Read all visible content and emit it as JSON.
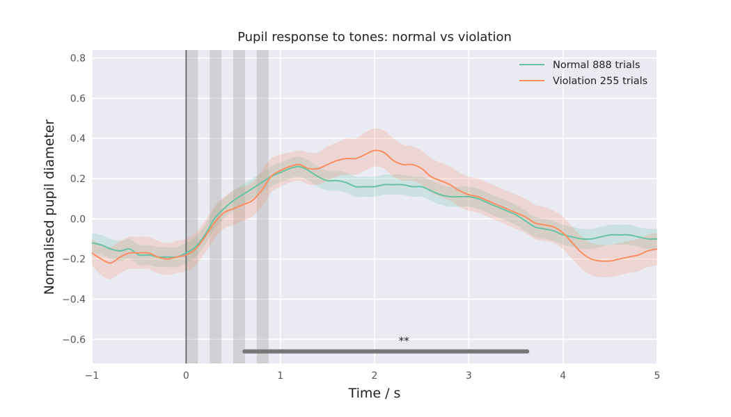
{
  "chart_data": {
    "type": "line",
    "title": "Pupil response to tones: normal vs violation",
    "xlabel": "Time / s",
    "ylabel": "Normalised pupil diameter",
    "xlim": [
      -1,
      5
    ],
    "ylim": [
      -0.72,
      0.84
    ],
    "xticks": [
      -1,
      0,
      1,
      2,
      3,
      4,
      5
    ],
    "xtick_labels": [
      "−1",
      "0",
      "1",
      "2",
      "3",
      "4",
      "5"
    ],
    "yticks": [
      -0.6,
      -0.4,
      -0.2,
      0.0,
      0.2,
      0.4,
      0.6,
      0.8
    ],
    "ytick_labels": [
      "−0.6",
      "−0.4",
      "−0.2",
      "0.0",
      "0.2",
      "0.4",
      "0.6",
      "0.8"
    ],
    "grid": true,
    "legend_position": "top-right",
    "x": [
      -1.0,
      -0.9,
      -0.8,
      -0.7,
      -0.6,
      -0.5,
      -0.4,
      -0.3,
      -0.2,
      -0.1,
      0.0,
      0.1,
      0.2,
      0.3,
      0.4,
      0.5,
      0.6,
      0.7,
      0.8,
      0.9,
      1.0,
      1.1,
      1.2,
      1.3,
      1.4,
      1.5,
      1.6,
      1.7,
      1.8,
      1.9,
      2.0,
      2.1,
      2.2,
      2.3,
      2.4,
      2.5,
      2.6,
      2.7,
      2.8,
      2.9,
      3.0,
      3.1,
      3.2,
      3.3,
      3.4,
      3.5,
      3.6,
      3.7,
      3.8,
      3.9,
      4.0,
      4.1,
      4.2,
      4.3,
      4.4,
      4.5,
      4.6,
      4.7,
      4.8,
      4.9,
      5.0
    ],
    "series": [
      {
        "name": "Normal 888 trials",
        "color": "#66c2a5",
        "values": [
          -0.12,
          -0.13,
          -0.15,
          -0.16,
          -0.15,
          -0.18,
          -0.18,
          -0.19,
          -0.19,
          -0.19,
          -0.17,
          -0.14,
          -0.08,
          0.0,
          0.05,
          0.09,
          0.12,
          0.15,
          0.18,
          0.21,
          0.23,
          0.25,
          0.26,
          0.24,
          0.21,
          0.19,
          0.19,
          0.18,
          0.16,
          0.16,
          0.16,
          0.17,
          0.17,
          0.17,
          0.16,
          0.16,
          0.14,
          0.12,
          0.11,
          0.11,
          0.11,
          0.1,
          0.08,
          0.06,
          0.04,
          0.02,
          -0.01,
          -0.04,
          -0.05,
          -0.06,
          -0.08,
          -0.09,
          -0.1,
          -0.1,
          -0.09,
          -0.08,
          -0.08,
          -0.08,
          -0.09,
          -0.1,
          -0.1
        ],
        "lower": [
          -0.17,
          -0.18,
          -0.2,
          -0.21,
          -0.2,
          -0.23,
          -0.23,
          -0.24,
          -0.24,
          -0.24,
          -0.22,
          -0.19,
          -0.13,
          -0.05,
          0.0,
          0.04,
          0.07,
          0.1,
          0.13,
          0.16,
          0.18,
          0.2,
          0.21,
          0.19,
          0.16,
          0.14,
          0.14,
          0.13,
          0.11,
          0.11,
          0.11,
          0.12,
          0.12,
          0.12,
          0.11,
          0.11,
          0.09,
          0.07,
          0.06,
          0.06,
          0.06,
          0.05,
          0.03,
          0.01,
          -0.01,
          -0.03,
          -0.06,
          -0.09,
          -0.1,
          -0.11,
          -0.13,
          -0.14,
          -0.15,
          -0.15,
          -0.14,
          -0.13,
          -0.13,
          -0.13,
          -0.14,
          -0.15,
          -0.15
        ],
        "upper": [
          -0.07,
          -0.08,
          -0.1,
          -0.11,
          -0.1,
          -0.13,
          -0.13,
          -0.14,
          -0.14,
          -0.14,
          -0.12,
          -0.09,
          -0.03,
          0.05,
          0.1,
          0.14,
          0.17,
          0.2,
          0.23,
          0.26,
          0.28,
          0.3,
          0.31,
          0.29,
          0.26,
          0.24,
          0.24,
          0.23,
          0.21,
          0.21,
          0.21,
          0.22,
          0.22,
          0.22,
          0.21,
          0.21,
          0.19,
          0.17,
          0.16,
          0.16,
          0.16,
          0.15,
          0.13,
          0.11,
          0.09,
          0.07,
          0.04,
          0.01,
          0.0,
          -0.01,
          -0.03,
          -0.04,
          -0.05,
          -0.05,
          -0.04,
          -0.03,
          -0.03,
          -0.03,
          -0.04,
          -0.05,
          -0.05
        ]
      },
      {
        "name": "Violation 255 trials",
        "color": "#fc8d62",
        "values": [
          -0.17,
          -0.2,
          -0.22,
          -0.19,
          -0.17,
          -0.17,
          -0.17,
          -0.19,
          -0.2,
          -0.19,
          -0.18,
          -0.15,
          -0.09,
          -0.02,
          0.03,
          0.05,
          0.07,
          0.09,
          0.14,
          0.21,
          0.24,
          0.26,
          0.27,
          0.25,
          0.25,
          0.27,
          0.29,
          0.3,
          0.3,
          0.32,
          0.34,
          0.33,
          0.29,
          0.27,
          0.27,
          0.25,
          0.21,
          0.19,
          0.17,
          0.14,
          0.12,
          0.11,
          0.09,
          0.07,
          0.05,
          0.03,
          0.01,
          -0.02,
          -0.03,
          -0.04,
          -0.07,
          -0.12,
          -0.17,
          -0.2,
          -0.21,
          -0.21,
          -0.2,
          -0.19,
          -0.18,
          -0.16,
          -0.15
        ],
        "lower": [
          -0.23,
          -0.28,
          -0.3,
          -0.27,
          -0.25,
          -0.25,
          -0.25,
          -0.27,
          -0.28,
          -0.27,
          -0.26,
          -0.23,
          -0.17,
          -0.1,
          -0.05,
          -0.03,
          -0.01,
          0.01,
          0.06,
          0.13,
          0.16,
          0.18,
          0.19,
          0.17,
          0.17,
          0.19,
          0.21,
          0.22,
          0.22,
          0.24,
          0.26,
          0.25,
          0.21,
          0.19,
          0.19,
          0.17,
          0.13,
          0.11,
          0.09,
          0.06,
          0.04,
          0.03,
          0.01,
          -0.01,
          -0.03,
          -0.05,
          -0.07,
          -0.1,
          -0.11,
          -0.12,
          -0.15,
          -0.2,
          -0.25,
          -0.28,
          -0.29,
          -0.29,
          -0.28,
          -0.27,
          -0.26,
          -0.24,
          -0.23
        ],
        "upper": [
          -0.1,
          -0.13,
          -0.14,
          -0.11,
          -0.09,
          -0.09,
          -0.09,
          -0.11,
          -0.12,
          -0.11,
          -0.1,
          -0.07,
          -0.01,
          0.06,
          0.11,
          0.14,
          0.16,
          0.18,
          0.24,
          0.3,
          0.32,
          0.33,
          0.34,
          0.33,
          0.33,
          0.36,
          0.38,
          0.4,
          0.4,
          0.43,
          0.45,
          0.44,
          0.4,
          0.37,
          0.36,
          0.34,
          0.3,
          0.28,
          0.26,
          0.23,
          0.21,
          0.2,
          0.18,
          0.16,
          0.14,
          0.12,
          0.1,
          0.07,
          0.06,
          0.04,
          0.01,
          -0.04,
          -0.09,
          -0.12,
          -0.13,
          -0.13,
          -0.12,
          -0.11,
          -0.1,
          -0.08,
          -0.07
        ]
      }
    ],
    "vertical_line_x": 0,
    "shaded_intervals": [
      [
        0,
        0.125
      ],
      [
        0.25,
        0.375
      ],
      [
        0.5,
        0.625
      ],
      [
        0.75,
        0.875
      ]
    ],
    "significance_bar": {
      "x_start": 0.62,
      "x_end": 3.62,
      "y": -0.66,
      "label": "**",
      "color": "#777777"
    },
    "colors": {
      "axes_bg": "#eaeaf2",
      "grid": "#ffffff"
    }
  }
}
